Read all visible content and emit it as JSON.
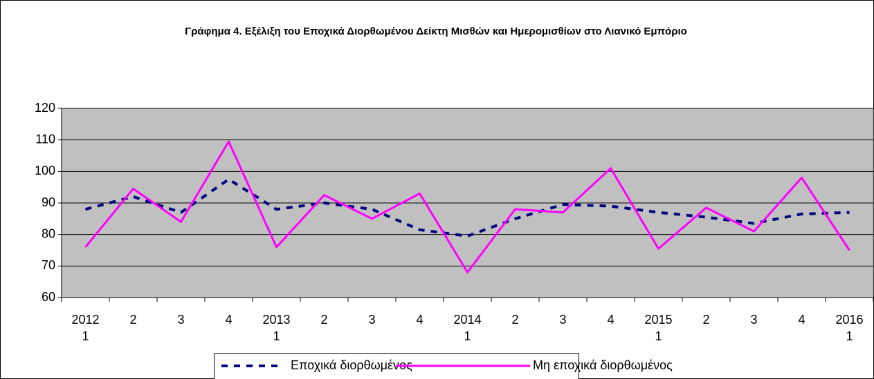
{
  "chart_data": {
    "type": "line",
    "title": "Γράφημα 4. Εξέλιξη του Εποχικά Διορθωμένου Δείκτη Μισθών και Ημερομισθίων στο Λιανικό Εμπόριο",
    "categories": [
      [
        "2012",
        "1"
      ],
      [
        "2"
      ],
      [
        "3"
      ],
      [
        "4"
      ],
      [
        "2013",
        "1"
      ],
      [
        "2"
      ],
      [
        "3"
      ],
      [
        "4"
      ],
      [
        "2014",
        "1"
      ],
      [
        "2"
      ],
      [
        "3"
      ],
      [
        "4"
      ],
      [
        "2015",
        "1"
      ],
      [
        "2"
      ],
      [
        "3"
      ],
      [
        "4"
      ],
      [
        "2016",
        "1"
      ]
    ],
    "series": [
      {
        "name": "Εποχικά διορθωμένος",
        "color": "#000080",
        "dashed": true,
        "values": [
          88,
          92,
          87,
          97.5,
          88,
          90,
          88,
          81.5,
          79.5,
          85,
          89.5,
          89,
          87,
          85.5,
          83.5,
          86.5,
          87
        ]
      },
      {
        "name": "Μη εποχικά διορθωμένος",
        "color": "#ff00ff",
        "dashed": false,
        "values": [
          76,
          94.5,
          84,
          109.5,
          76,
          92.5,
          85,
          93,
          68,
          88,
          87,
          101,
          75.5,
          88.5,
          81,
          98,
          75
        ]
      }
    ],
    "ylim": [
      60,
      120
    ],
    "yticks": [
      60,
      70,
      80,
      90,
      100,
      110,
      120
    ],
    "grid": true
  }
}
